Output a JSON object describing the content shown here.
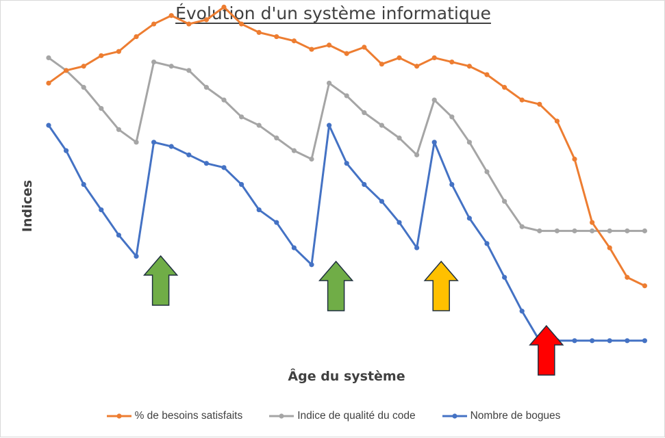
{
  "chart_data": {
    "type": "line",
    "title": "Évolution d'un système informatique",
    "xlabel": "Âge du système",
    "ylabel": "Indices",
    "grid": false,
    "legend_position": "bottom",
    "ylim": [
      0,
      100
    ],
    "x": [
      1,
      2,
      3,
      4,
      5,
      6,
      7,
      8,
      9,
      10,
      11,
      12,
      13,
      14,
      15,
      16,
      17,
      18,
      19,
      20,
      21,
      22,
      23,
      24,
      25,
      26,
      27,
      28,
      29,
      30,
      31,
      32,
      33,
      34,
      35
    ],
    "series": [
      {
        "name": "% de besoins satisfaits",
        "color": "#ED7D31",
        "values": [
          68,
          71,
          72,
          74.5,
          75.5,
          79,
          82,
          84,
          82,
          83,
          86,
          82,
          80,
          79,
          78,
          76,
          77,
          75,
          76.5,
          72.5,
          74,
          72,
          74,
          73,
          72,
          70,
          67,
          64,
          63,
          59,
          50,
          35,
          29,
          22,
          20
        ]
      },
      {
        "name": "Indice de qualité du code",
        "color": "#A5A5A5",
        "values": [
          74,
          71,
          67,
          62,
          57,
          54,
          73,
          72,
          71,
          67,
          64,
          60,
          58,
          55,
          52,
          50,
          68,
          65,
          61,
          58,
          55,
          51,
          64,
          60,
          54,
          47,
          40,
          34,
          33,
          33,
          33,
          33,
          33,
          33,
          33
        ]
      },
      {
        "name": "Nombre de bogues",
        "color": "#4472C4",
        "values": [
          58,
          52,
          44,
          38,
          32,
          27,
          54,
          53,
          51,
          49,
          48,
          44,
          38,
          35,
          29,
          25,
          58,
          49,
          44,
          40,
          35,
          29,
          54,
          44,
          36,
          30,
          22,
          14,
          7,
          7,
          7,
          7,
          7,
          7,
          7
        ]
      }
    ],
    "annotations": [
      {
        "type": "arrow-up",
        "at_x": 7,
        "color": "#70AD47"
      },
      {
        "type": "arrow-up",
        "at_x": 17,
        "color": "#70AD47"
      },
      {
        "type": "arrow-up",
        "at_x": 23,
        "color": "#FFC000"
      },
      {
        "type": "arrow-up",
        "at_x": 29,
        "color": "#FF0000"
      }
    ]
  }
}
